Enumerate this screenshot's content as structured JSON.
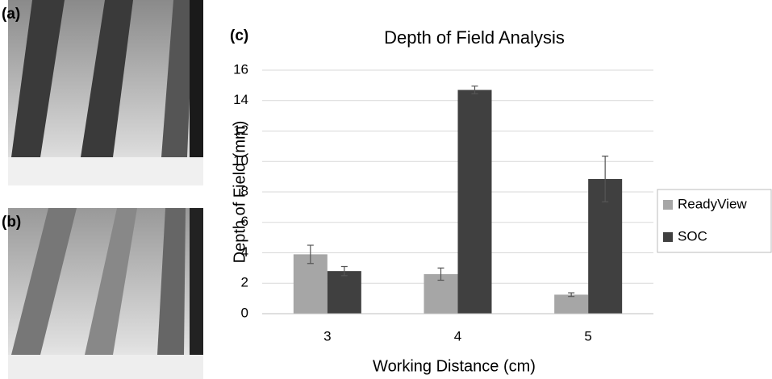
{
  "panel_labels": [
    "(a)",
    "(b)",
    "(c)"
  ],
  "chart_data": {
    "type": "bar",
    "title": "Depth of Field Analysis",
    "x_label": "Working Distance (cm)",
    "y_label": "Depth of Field (mm)",
    "categories": [
      "3",
      "4",
      "5"
    ],
    "series": [
      {
        "name": "ReadyView",
        "color": "#a6a6a6",
        "values": [
          3.9,
          2.6,
          1.25
        ],
        "errors": [
          0.6,
          0.4,
          0.12
        ]
      },
      {
        "name": "SOC",
        "color": "#404040",
        "values": [
          2.8,
          14.7,
          8.85
        ],
        "errors": [
          0.3,
          0.25,
          1.5
        ]
      }
    ],
    "ylim": [
      0,
      16
    ],
    "yticks": [
      0,
      2,
      4,
      6,
      8,
      10,
      12,
      14,
      16
    ],
    "grid": true,
    "legend": "right"
  }
}
